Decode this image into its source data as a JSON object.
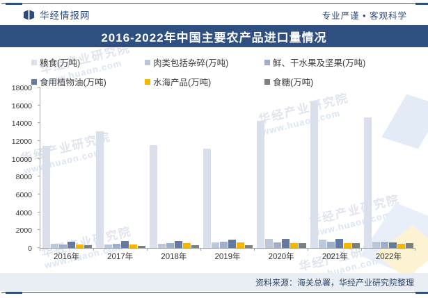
{
  "header": {
    "brand": "华经情报网",
    "tagline": "专业严谨 • 客观科学"
  },
  "title_bar": {
    "text": "2016-2022年中国主要农产品进口量情况",
    "bg": "#2f4f80"
  },
  "watermark": {
    "line1": "华经产业研究院",
    "line2": "www.huaon.com"
  },
  "footer": {
    "source": "资料来源：海关总署，华经产业研究院整理"
  },
  "colors": {
    "navy": "#2f4f80",
    "axis": "#a6a6a6",
    "footer_bg": "#e9eef5"
  },
  "chart_data": {
    "type": "bar",
    "title": "2016-2022年中国主要农产品进口量情况",
    "categories": [
      "2016年",
      "2017年",
      "2018年",
      "2019年",
      "2020年",
      "2021年",
      "2022年"
    ],
    "series": [
      {
        "name": "粮食(万吨)",
        "color": "#d9dfeb",
        "values": [
          11468,
          13062,
          11555,
          11144,
          14262,
          16454,
          14687
        ]
      },
      {
        "name": "肉类包括杂碎(万吨)",
        "color": "#bcc7da",
        "values": [
          460,
          427,
          485,
          618,
          991,
          938,
          740
        ]
      },
      {
        "name": "鲜、干水果及坚果(万吨)",
        "color": "#9fafcb",
        "values": [
          420,
          443,
          551,
          681,
          663,
          703,
          733
        ]
      },
      {
        "name": "食用植物油(万吨)",
        "color": "#64799f",
        "values": [
          688,
          743,
          809,
          953,
          1020,
          1020,
          650
        ]
      },
      {
        "name": "水海产品(万吨)",
        "color": "#f8b500",
        "values": [
          388,
          408,
          519,
          626,
          561,
          551,
          500
        ]
      },
      {
        "name": "食糖(万吨)",
        "color": "#79807d",
        "values": [
          306,
          229,
          280,
          339,
          527,
          567,
          530
        ]
      }
    ],
    "xlabel": "",
    "ylabel": "",
    "ylim": [
      0,
      18000
    ],
    "y_ticks": [
      0,
      2000,
      4000,
      6000,
      8000,
      10000,
      12000,
      14000,
      16000,
      18000
    ],
    "grid": false,
    "legend_position": "top"
  }
}
